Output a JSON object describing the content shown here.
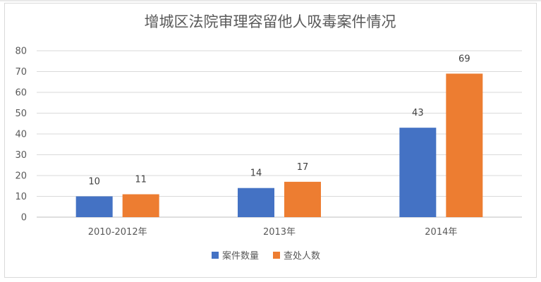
{
  "chart_data": {
    "type": "bar",
    "title": "增城区法院审理容留他人吸毒案件情况",
    "xlabel": "",
    "ylabel": "",
    "categories": [
      "2010-2012年",
      "2013年",
      "2014年"
    ],
    "series": [
      {
        "name": "案件数量",
        "values": [
          10,
          14,
          43
        ],
        "color": "#4472c4"
      },
      {
        "name": "查处人数",
        "values": [
          11,
          17,
          69
        ],
        "color": "#ed7d31"
      }
    ],
    "ylim": [
      0,
      80
    ],
    "yticks": [
      0,
      10,
      20,
      30,
      40,
      50,
      60,
      70,
      80
    ],
    "grid": true,
    "legend_position": "bottom",
    "data_labels": true
  }
}
